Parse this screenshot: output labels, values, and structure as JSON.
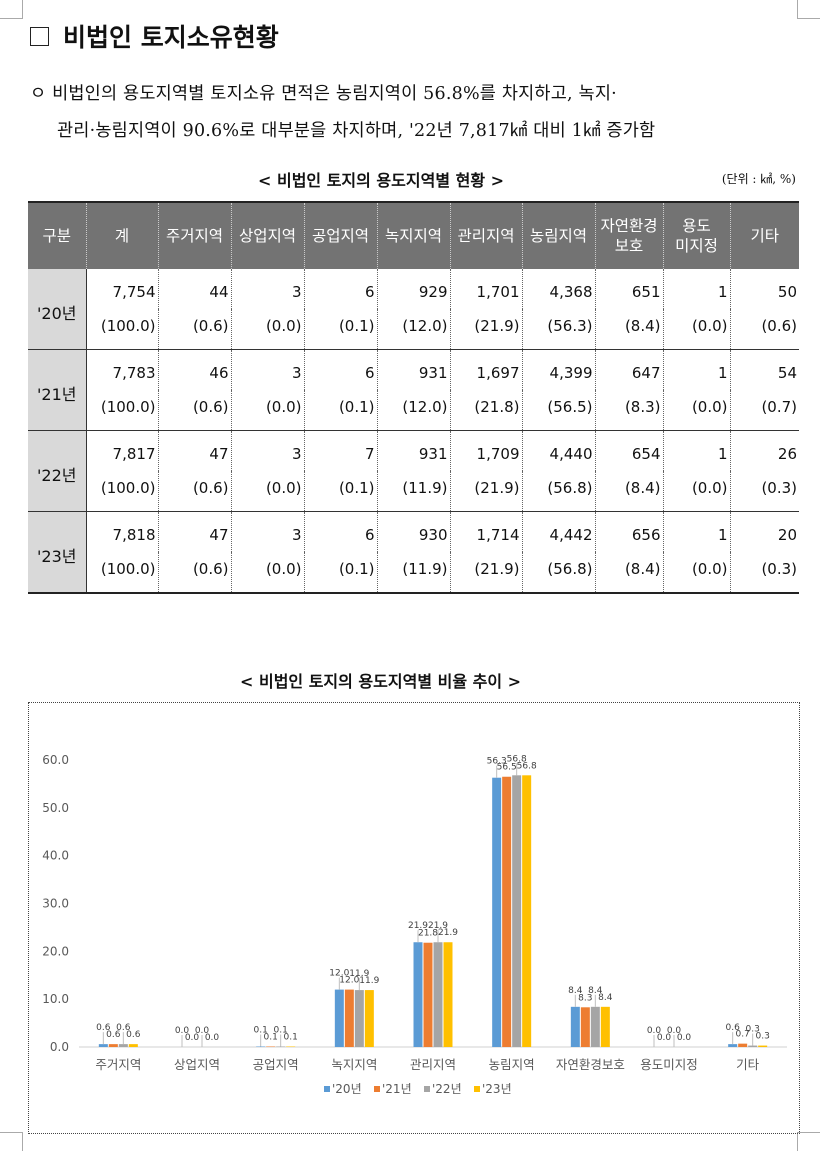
{
  "title": "비법인 토지소유현황",
  "paragraph": {
    "line1": "ㅇ 비법인의 용도지역별 토지소유 면적은 농림지역이 56.8%를 차지하고, 녹지·",
    "line2": "관리·농림지역이 90.6%로 대부분을 차지하며, '22년 7,817㎢ 대비 1㎢ 증가함"
  },
  "table_caption": "< 비법인 토지의 용도지역별 현황 >",
  "unit_label": "(단위 : ㎢, %)",
  "table": {
    "headers": [
      "구분",
      "계",
      "주거지역",
      "상업지역",
      "공업지역",
      "녹지지역",
      "관리지역",
      "농림지역",
      "자연환경\n보호",
      "용도\n미지정",
      "기타"
    ],
    "rows": [
      {
        "year": "'20년",
        "values": [
          "7,754",
          "44",
          "3",
          "6",
          "929",
          "1,701",
          "4,368",
          "651",
          "1",
          "50"
        ],
        "pcts": [
          "(100.0)",
          "(0.6)",
          "(0.0)",
          "(0.1)",
          "(12.0)",
          "(21.9)",
          "(56.3)",
          "(8.4)",
          "(0.0)",
          "(0.6)"
        ]
      },
      {
        "year": "'21년",
        "values": [
          "7,783",
          "46",
          "3",
          "6",
          "931",
          "1,697",
          "4,399",
          "647",
          "1",
          "54"
        ],
        "pcts": [
          "(100.0)",
          "(0.6)",
          "(0.0)",
          "(0.1)",
          "(12.0)",
          "(21.8)",
          "(56.5)",
          "(8.3)",
          "(0.0)",
          "(0.7)"
        ]
      },
      {
        "year": "'22년",
        "values": [
          "7,817",
          "47",
          "3",
          "7",
          "931",
          "1,709",
          "4,440",
          "654",
          "1",
          "26"
        ],
        "pcts": [
          "(100.0)",
          "(0.6)",
          "(0.0)",
          "(0.1)",
          "(11.9)",
          "(21.9)",
          "(56.8)",
          "(8.4)",
          "(0.0)",
          "(0.3)"
        ]
      },
      {
        "year": "'23년",
        "values": [
          "7,818",
          "47",
          "3",
          "6",
          "930",
          "1,714",
          "4,442",
          "656",
          "1",
          "20"
        ],
        "pcts": [
          "(100.0)",
          "(0.6)",
          "(0.0)",
          "(0.1)",
          "(11.9)",
          "(21.9)",
          "(56.8)",
          "(8.4)",
          "(0.0)",
          "(0.3)"
        ]
      }
    ]
  },
  "chart_caption": "< 비법인 토지의 용도지역별 비율 추이 >",
  "chart_data": {
    "type": "bar",
    "categories": [
      "주거지역",
      "상업지역",
      "공업지역",
      "녹지지역",
      "관리지역",
      "농림지역",
      "자연환경보호",
      "용도미지정",
      "기타"
    ],
    "series": [
      {
        "name": "'20년",
        "color": "#5b9bd5",
        "values": [
          0.6,
          0.0,
          0.1,
          12.0,
          21.9,
          56.3,
          8.4,
          0.0,
          0.6
        ]
      },
      {
        "name": "'21년",
        "color": "#ed7d31",
        "values": [
          0.6,
          0.0,
          0.1,
          12.0,
          21.8,
          56.5,
          8.3,
          0.0,
          0.7
        ]
      },
      {
        "name": "'22년",
        "color": "#a5a5a5",
        "values": [
          0.6,
          0.0,
          0.1,
          11.9,
          21.9,
          56.8,
          8.4,
          0.0,
          0.3
        ]
      },
      {
        "name": "'23년",
        "color": "#ffc000",
        "values": [
          0.6,
          0.0,
          0.1,
          11.9,
          21.9,
          56.8,
          8.4,
          0.0,
          0.3
        ]
      }
    ],
    "yticks": [
      "0.0",
      "10.0",
      "20.0",
      "30.0",
      "40.0",
      "50.0",
      "60.0"
    ],
    "ylim": [
      0,
      60
    ],
    "legend": "bottom",
    "grid": false
  }
}
